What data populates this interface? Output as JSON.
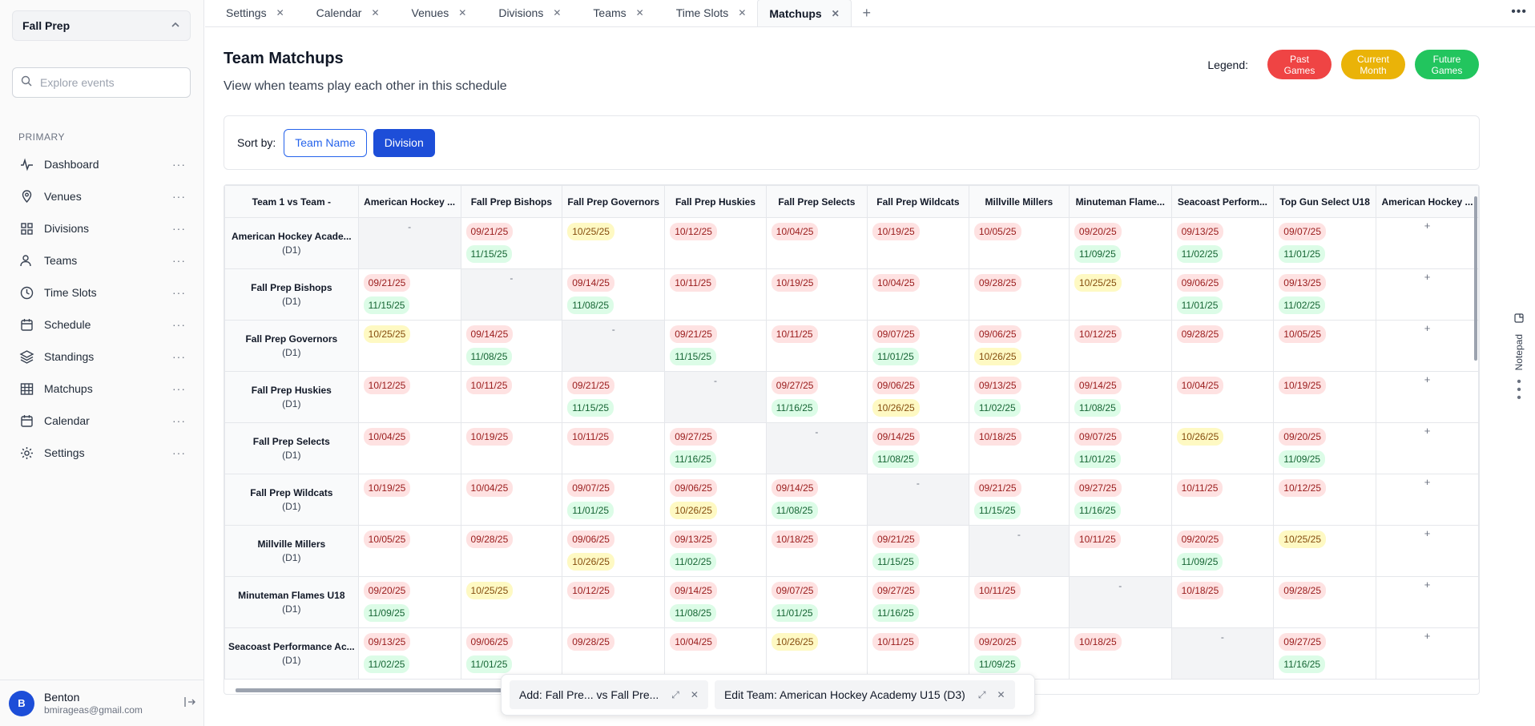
{
  "sidebar": {
    "event_name": "Fall Prep",
    "search_placeholder": "Explore events",
    "section_label": "PRIMARY",
    "items": [
      {
        "label": "Dashboard",
        "icon": "activity-icon"
      },
      {
        "label": "Venues",
        "icon": "map-pin-icon"
      },
      {
        "label": "Divisions",
        "icon": "grid-icon"
      },
      {
        "label": "Teams",
        "icon": "users-icon"
      },
      {
        "label": "Time Slots",
        "icon": "clock-icon"
      },
      {
        "label": "Schedule",
        "icon": "calendar-icon"
      },
      {
        "label": "Standings",
        "icon": "layers-icon"
      },
      {
        "label": "Matchups",
        "icon": "table-icon"
      },
      {
        "label": "Calendar",
        "icon": "calendar-icon"
      },
      {
        "label": "Settings",
        "icon": "gear-icon"
      }
    ],
    "more_glyph": "···",
    "user": {
      "initial": "B",
      "name": "Benton",
      "email": "bmirageas@gmail.com"
    }
  },
  "tabs": [
    {
      "label": "Settings",
      "active": false
    },
    {
      "label": "Calendar",
      "active": false
    },
    {
      "label": "Venues",
      "active": false
    },
    {
      "label": "Divisions",
      "active": false
    },
    {
      "label": "Teams",
      "active": false
    },
    {
      "label": "Time Slots",
      "active": false
    },
    {
      "label": "Matchups",
      "active": true
    }
  ],
  "page": {
    "title": "Team Matchups",
    "subtitle": "View when teams play each other in this schedule"
  },
  "legend": {
    "label": "Legend:",
    "items": [
      {
        "line1": "Past",
        "line2": "Games",
        "color": "#ef4444"
      },
      {
        "line1": "Current",
        "line2": "Month",
        "color": "#eab308"
      },
      {
        "line1": "Future",
        "line2": "Games",
        "color": "#22c55e"
      }
    ]
  },
  "sort": {
    "label": "Sort by:",
    "options": [
      "Team Name",
      "Division"
    ],
    "selected": "Division"
  },
  "matrix": {
    "corner": "Team 1 vs Team -",
    "columns": [
      "American Hockey ...",
      "Fall Prep Bishops",
      "Fall Prep Governors",
      "Fall Prep Huskies",
      "Fall Prep Selects",
      "Fall Prep Wildcats",
      "Millville Millers",
      "Minuteman Flame...",
      "Seacoast Perform...",
      "Top Gun Select U18",
      "American Hockey ..."
    ],
    "rows": [
      {
        "team": "American Hockey Acade...",
        "division": "(D1)",
        "cells": [
          "-",
          [
            [
              "09/21/25",
              "past"
            ],
            [
              "11/15/25",
              "fut"
            ]
          ],
          [
            [
              "10/25/25",
              "cur"
            ]
          ],
          [
            [
              "10/12/25",
              "past"
            ]
          ],
          [
            [
              "10/04/25",
              "past"
            ]
          ],
          [
            [
              "10/19/25",
              "past"
            ]
          ],
          [
            [
              "10/05/25",
              "past"
            ]
          ],
          [
            [
              "09/20/25",
              "past"
            ],
            [
              "11/09/25",
              "fut"
            ]
          ],
          [
            [
              "09/13/25",
              "past"
            ],
            [
              "11/02/25",
              "fut"
            ]
          ],
          [
            [
              "09/07/25",
              "past"
            ],
            [
              "11/01/25",
              "fut"
            ]
          ],
          "+"
        ]
      },
      {
        "team": "Fall Prep Bishops",
        "division": "(D1)",
        "cells": [
          [
            [
              "09/21/25",
              "past"
            ],
            [
              "11/15/25",
              "fut"
            ]
          ],
          "-",
          [
            [
              "09/14/25",
              "past"
            ],
            [
              "11/08/25",
              "fut"
            ]
          ],
          [
            [
              "10/11/25",
              "past"
            ]
          ],
          [
            [
              "10/19/25",
              "past"
            ]
          ],
          [
            [
              "10/04/25",
              "past"
            ]
          ],
          [
            [
              "09/28/25",
              "past"
            ]
          ],
          [
            [
              "10/25/25",
              "cur"
            ]
          ],
          [
            [
              "09/06/25",
              "past"
            ],
            [
              "11/01/25",
              "fut"
            ]
          ],
          [
            [
              "09/13/25",
              "past"
            ],
            [
              "11/02/25",
              "fut"
            ]
          ],
          "+"
        ]
      },
      {
        "team": "Fall Prep Governors",
        "division": "(D1)",
        "cells": [
          [
            [
              "10/25/25",
              "cur"
            ]
          ],
          [
            [
              "09/14/25",
              "past"
            ],
            [
              "11/08/25",
              "fut"
            ]
          ],
          "-",
          [
            [
              "09/21/25",
              "past"
            ],
            [
              "11/15/25",
              "fut"
            ]
          ],
          [
            [
              "10/11/25",
              "past"
            ]
          ],
          [
            [
              "09/07/25",
              "past"
            ],
            [
              "11/01/25",
              "fut"
            ]
          ],
          [
            [
              "09/06/25",
              "past"
            ],
            [
              "10/26/25",
              "cur"
            ]
          ],
          [
            [
              "10/12/25",
              "past"
            ]
          ],
          [
            [
              "09/28/25",
              "past"
            ]
          ],
          [
            [
              "10/05/25",
              "past"
            ]
          ],
          "+"
        ]
      },
      {
        "team": "Fall Prep Huskies",
        "division": "(D1)",
        "cells": [
          [
            [
              "10/12/25",
              "past"
            ]
          ],
          [
            [
              "10/11/25",
              "past"
            ]
          ],
          [
            [
              "09/21/25",
              "past"
            ],
            [
              "11/15/25",
              "fut"
            ]
          ],
          "-",
          [
            [
              "09/27/25",
              "past"
            ],
            [
              "11/16/25",
              "fut"
            ]
          ],
          [
            [
              "09/06/25",
              "past"
            ],
            [
              "10/26/25",
              "cur"
            ]
          ],
          [
            [
              "09/13/25",
              "past"
            ],
            [
              "11/02/25",
              "fut"
            ]
          ],
          [
            [
              "09/14/25",
              "past"
            ],
            [
              "11/08/25",
              "fut"
            ]
          ],
          [
            [
              "10/04/25",
              "past"
            ]
          ],
          [
            [
              "10/19/25",
              "past"
            ]
          ],
          "+"
        ]
      },
      {
        "team": "Fall Prep Selects",
        "division": "(D1)",
        "cells": [
          [
            [
              "10/04/25",
              "past"
            ]
          ],
          [
            [
              "10/19/25",
              "past"
            ]
          ],
          [
            [
              "10/11/25",
              "past"
            ]
          ],
          [
            [
              "09/27/25",
              "past"
            ],
            [
              "11/16/25",
              "fut"
            ]
          ],
          "-",
          [
            [
              "09/14/25",
              "past"
            ],
            [
              "11/08/25",
              "fut"
            ]
          ],
          [
            [
              "10/18/25",
              "past"
            ]
          ],
          [
            [
              "09/07/25",
              "past"
            ],
            [
              "11/01/25",
              "fut"
            ]
          ],
          [
            [
              "10/26/25",
              "cur"
            ]
          ],
          [
            [
              "09/20/25",
              "past"
            ],
            [
              "11/09/25",
              "fut"
            ]
          ],
          "+"
        ]
      },
      {
        "team": "Fall Prep Wildcats",
        "division": "(D1)",
        "cells": [
          [
            [
              "10/19/25",
              "past"
            ]
          ],
          [
            [
              "10/04/25",
              "past"
            ]
          ],
          [
            [
              "09/07/25",
              "past"
            ],
            [
              "11/01/25",
              "fut"
            ]
          ],
          [
            [
              "09/06/25",
              "past"
            ],
            [
              "10/26/25",
              "cur"
            ]
          ],
          [
            [
              "09/14/25",
              "past"
            ],
            [
              "11/08/25",
              "fut"
            ]
          ],
          "-",
          [
            [
              "09/21/25",
              "past"
            ],
            [
              "11/15/25",
              "fut"
            ]
          ],
          [
            [
              "09/27/25",
              "past"
            ],
            [
              "11/16/25",
              "fut"
            ]
          ],
          [
            [
              "10/11/25",
              "past"
            ]
          ],
          [
            [
              "10/12/25",
              "past"
            ]
          ],
          "+"
        ]
      },
      {
        "team": "Millville Millers",
        "division": "(D1)",
        "cells": [
          [
            [
              "10/05/25",
              "past"
            ]
          ],
          [
            [
              "09/28/25",
              "past"
            ]
          ],
          [
            [
              "09/06/25",
              "past"
            ],
            [
              "10/26/25",
              "cur"
            ]
          ],
          [
            [
              "09/13/25",
              "past"
            ],
            [
              "11/02/25",
              "fut"
            ]
          ],
          [
            [
              "10/18/25",
              "past"
            ]
          ],
          [
            [
              "09/21/25",
              "past"
            ],
            [
              "11/15/25",
              "fut"
            ]
          ],
          "-",
          [
            [
              "10/11/25",
              "past"
            ]
          ],
          [
            [
              "09/20/25",
              "past"
            ],
            [
              "11/09/25",
              "fut"
            ]
          ],
          [
            [
              "10/25/25",
              "cur"
            ]
          ],
          "+"
        ]
      },
      {
        "team": "Minuteman Flames U18",
        "division": "(D1)",
        "cells": [
          [
            [
              "09/20/25",
              "past"
            ],
            [
              "11/09/25",
              "fut"
            ]
          ],
          [
            [
              "10/25/25",
              "cur"
            ]
          ],
          [
            [
              "10/12/25",
              "past"
            ]
          ],
          [
            [
              "09/14/25",
              "past"
            ],
            [
              "11/08/25",
              "fut"
            ]
          ],
          [
            [
              "09/07/25",
              "past"
            ],
            [
              "11/01/25",
              "fut"
            ]
          ],
          [
            [
              "09/27/25",
              "past"
            ],
            [
              "11/16/25",
              "fut"
            ]
          ],
          [
            [
              "10/11/25",
              "past"
            ]
          ],
          "-",
          [
            [
              "10/18/25",
              "past"
            ]
          ],
          [
            [
              "09/28/25",
              "past"
            ]
          ],
          "+"
        ]
      },
      {
        "team": "Seacoast Performance Ac...",
        "division": "(D1)",
        "cells": [
          [
            [
              "09/13/25",
              "past"
            ],
            [
              "11/02/25",
              "fut"
            ]
          ],
          [
            [
              "09/06/25",
              "past"
            ],
            [
              "11/01/25",
              "fut"
            ]
          ],
          [
            [
              "09/28/25",
              "past"
            ]
          ],
          [
            [
              "10/04/25",
              "past"
            ]
          ],
          [
            [
              "10/26/25",
              "cur"
            ]
          ],
          [
            [
              "10/11/25",
              "past"
            ]
          ],
          [
            [
              "09/20/25",
              "past"
            ],
            [
              "11/09/25",
              "fut"
            ]
          ],
          [
            [
              "10/18/25",
              "past"
            ]
          ],
          "-",
          [
            [
              "09/27/25",
              "past"
            ],
            [
              "11/16/25",
              "fut"
            ]
          ],
          "+"
        ]
      }
    ]
  },
  "floating_tabs": [
    {
      "label": "Add: Fall Pre... vs Fall Pre..."
    },
    {
      "label": "Edit Team: American Hockey Academy U15 (D3)"
    }
  ],
  "notepad": {
    "label": "Notepad"
  }
}
